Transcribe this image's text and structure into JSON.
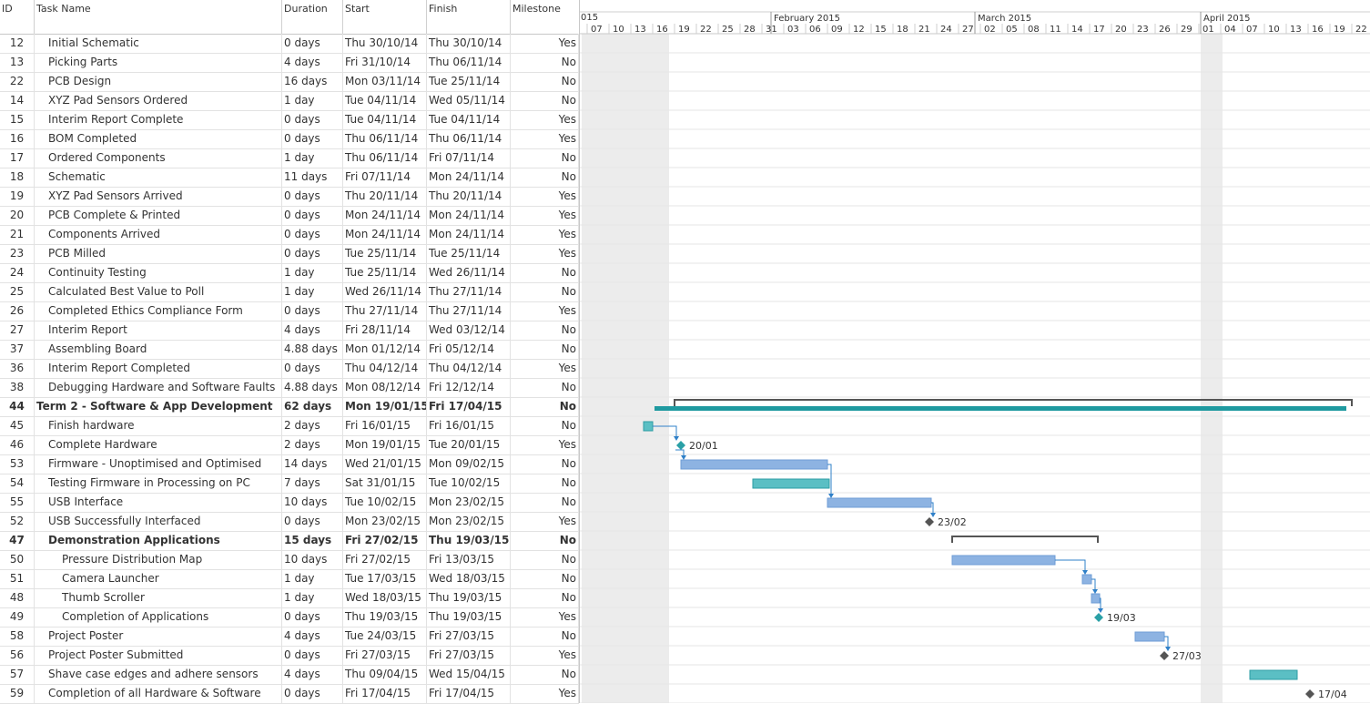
{
  "columns": {
    "id": "ID",
    "name": "Task Name",
    "duration": "Duration",
    "start": "Start",
    "finish": "Finish",
    "milestone": "Milestone"
  },
  "timeline": {
    "year_partial_label": "015",
    "months": [
      {
        "label": "February 2015",
        "date": "2015-02-01"
      },
      {
        "label": "March 2015",
        "date": "2015-03-01"
      },
      {
        "label": "April 2015",
        "date": "2015-04-01"
      }
    ],
    "tick_labels": [
      "07",
      "10",
      "13",
      "16",
      "19",
      "22",
      "25",
      "28",
      "31",
      "03",
      "06",
      "09",
      "12",
      "15",
      "18",
      "21",
      "24",
      "27",
      "02",
      "05",
      "08",
      "11",
      "14",
      "17",
      "20",
      "23",
      "26",
      "29",
      "01",
      "04",
      "07",
      "10",
      "13",
      "16",
      "19",
      "22"
    ]
  },
  "tasks": [
    {
      "id": "12",
      "name": "Initial Schematic",
      "duration": "0 days",
      "start": "Thu 30/10/14",
      "finish": "Thu 30/10/14",
      "milestone": "Yes",
      "level": 1
    },
    {
      "id": "13",
      "name": "Picking Parts",
      "duration": "4 days",
      "start": "Fri 31/10/14",
      "finish": "Thu 06/11/14",
      "milestone": "No",
      "level": 1
    },
    {
      "id": "22",
      "name": "PCB Design",
      "duration": "16 days",
      "start": "Mon 03/11/14",
      "finish": "Tue 25/11/14",
      "milestone": "No",
      "level": 1
    },
    {
      "id": "14",
      "name": "XYZ Pad Sensors Ordered",
      "duration": "1 day",
      "start": "Tue 04/11/14",
      "finish": "Wed 05/11/14",
      "milestone": "No",
      "level": 1
    },
    {
      "id": "15",
      "name": "Interim Report Complete",
      "duration": "0 days",
      "start": "Tue 04/11/14",
      "finish": "Tue 04/11/14",
      "milestone": "Yes",
      "level": 1
    },
    {
      "id": "16",
      "name": "BOM Completed",
      "duration": "0 days",
      "start": "Thu 06/11/14",
      "finish": "Thu 06/11/14",
      "milestone": "Yes",
      "level": 1
    },
    {
      "id": "17",
      "name": "Ordered Components",
      "duration": "1 day",
      "start": "Thu 06/11/14",
      "finish": "Fri 07/11/14",
      "milestone": "No",
      "level": 1
    },
    {
      "id": "18",
      "name": "Schematic",
      "duration": "11 days",
      "start": "Fri 07/11/14",
      "finish": "Mon 24/11/14",
      "milestone": "No",
      "level": 1
    },
    {
      "id": "19",
      "name": "XYZ Pad Sensors Arrived",
      "duration": "0 days",
      "start": "Thu 20/11/14",
      "finish": "Thu 20/11/14",
      "milestone": "Yes",
      "level": 1
    },
    {
      "id": "20",
      "name": "PCB Complete & Printed",
      "duration": "0 days",
      "start": "Mon 24/11/14",
      "finish": "Mon 24/11/14",
      "milestone": "Yes",
      "level": 1
    },
    {
      "id": "21",
      "name": "Components Arrived",
      "duration": "0 days",
      "start": "Mon 24/11/14",
      "finish": "Mon 24/11/14",
      "milestone": "Yes",
      "level": 1
    },
    {
      "id": "23",
      "name": "PCB Milled",
      "duration": "0 days",
      "start": "Tue 25/11/14",
      "finish": "Tue 25/11/14",
      "milestone": "Yes",
      "level": 1
    },
    {
      "id": "24",
      "name": "Continuity Testing",
      "duration": "1 day",
      "start": "Tue 25/11/14",
      "finish": "Wed 26/11/14",
      "milestone": "No",
      "level": 1
    },
    {
      "id": "25",
      "name": "Calculated Best Value to Poll",
      "duration": "1 day",
      "start": "Wed 26/11/14",
      "finish": "Thu 27/11/14",
      "milestone": "No",
      "level": 1
    },
    {
      "id": "26",
      "name": "Completed Ethics Compliance Form",
      "duration": "0 days",
      "start": "Thu 27/11/14",
      "finish": "Thu 27/11/14",
      "milestone": "Yes",
      "level": 1
    },
    {
      "id": "27",
      "name": "Interim Report",
      "duration": "4 days",
      "start": "Fri 28/11/14",
      "finish": "Wed 03/12/14",
      "milestone": "No",
      "level": 1
    },
    {
      "id": "37",
      "name": "Assembling Board",
      "duration": "4.88 days",
      "start": "Mon 01/12/14",
      "finish": "Fri 05/12/14",
      "milestone": "No",
      "level": 1
    },
    {
      "id": "36",
      "name": "Interim Report Completed",
      "duration": "0 days",
      "start": "Thu 04/12/14",
      "finish": "Thu 04/12/14",
      "milestone": "Yes",
      "level": 1
    },
    {
      "id": "38",
      "name": "Debugging Hardware and Software Faults",
      "duration": "4.88 days",
      "start": "Mon 08/12/14",
      "finish": "Fri 12/12/14",
      "milestone": "No",
      "level": 1
    },
    {
      "id": "44",
      "name": "Term 2 - Software & App Development",
      "duration": "62 days",
      "start": "Mon 19/01/15",
      "finish": "Fri 17/04/15",
      "milestone": "No",
      "level": 0,
      "summary": true
    },
    {
      "id": "45",
      "name": "Finish hardware",
      "duration": "2 days",
      "start": "Fri 16/01/15",
      "finish": "Fri 16/01/15",
      "milestone": "No",
      "level": 1
    },
    {
      "id": "46",
      "name": "Complete Hardware",
      "duration": "2 days",
      "start": "Mon 19/01/15",
      "finish": "Tue 20/01/15",
      "milestone": "Yes",
      "level": 1
    },
    {
      "id": "53",
      "name": "Firmware - Unoptimised and Optimised",
      "duration": "14 days",
      "start": "Wed 21/01/15",
      "finish": "Mon 09/02/15",
      "milestone": "No",
      "level": 1
    },
    {
      "id": "54",
      "name": "Testing Firmware in Processing on PC",
      "duration": "7 days",
      "start": "Sat 31/01/15",
      "finish": "Tue 10/02/15",
      "milestone": "No",
      "level": 1
    },
    {
      "id": "55",
      "name": "USB Interface",
      "duration": "10 days",
      "start": "Tue 10/02/15",
      "finish": "Mon 23/02/15",
      "milestone": "No",
      "level": 1
    },
    {
      "id": "52",
      "name": "USB Successfully Interfaced",
      "duration": "0 days",
      "start": "Mon 23/02/15",
      "finish": "Mon 23/02/15",
      "milestone": "Yes",
      "level": 1
    },
    {
      "id": "47",
      "name": "Demonstration Applications",
      "duration": "15 days",
      "start": "Fri 27/02/15",
      "finish": "Thu 19/03/15",
      "milestone": "No",
      "level": 1,
      "summary": true
    },
    {
      "id": "50",
      "name": "Pressure Distribution Map",
      "duration": "10 days",
      "start": "Fri 27/02/15",
      "finish": "Fri 13/03/15",
      "milestone": "No",
      "level": 2
    },
    {
      "id": "51",
      "name": "Camera Launcher",
      "duration": "1 day",
      "start": "Tue 17/03/15",
      "finish": "Wed 18/03/15",
      "milestone": "No",
      "level": 2
    },
    {
      "id": "48",
      "name": "Thumb Scroller",
      "duration": "1 day",
      "start": "Wed 18/03/15",
      "finish": "Thu 19/03/15",
      "milestone": "No",
      "level": 2
    },
    {
      "id": "49",
      "name": "Completion of Applications",
      "duration": "0 days",
      "start": "Thu 19/03/15",
      "finish": "Thu 19/03/15",
      "milestone": "Yes",
      "level": 2
    },
    {
      "id": "58",
      "name": "Project Poster",
      "duration": "4 days",
      "start": "Tue 24/03/15",
      "finish": "Fri 27/03/15",
      "milestone": "No",
      "level": 1
    },
    {
      "id": "56",
      "name": "Project Poster Submitted",
      "duration": "0 days",
      "start": "Fri 27/03/15",
      "finish": "Fri 27/03/15",
      "milestone": "Yes",
      "level": 1
    },
    {
      "id": "57",
      "name": "Shave case edges and adhere sensors",
      "duration": "4 days",
      "start": "Thu 09/04/15",
      "finish": "Wed 15/04/15",
      "milestone": "No",
      "level": 1
    },
    {
      "id": "59",
      "name": "Completion of all Hardware & Software",
      "duration": "0 days",
      "start": "Fri 17/04/15",
      "finish": "Fri 17/04/15",
      "milestone": "Yes",
      "level": 1
    }
  ],
  "milestone_labels": {
    "46": "20/01",
    "52": "23/02",
    "49": "19/03",
    "56": "27/03",
    "59": "17/04"
  },
  "colors": {
    "task_bar": "#8db3e2",
    "task_bar_border": "#6f9ed6",
    "critical_bar": "#5bbfc4",
    "critical_bar_border": "#2e9ea4",
    "summary_bar": "#1f9aa0",
    "summary_bracket": "#555555",
    "milestone_teal": "#2aa0a6",
    "milestone_grey": "#555555",
    "link": "#2f80c8",
    "nonwork_shade": "#ececec"
  }
}
